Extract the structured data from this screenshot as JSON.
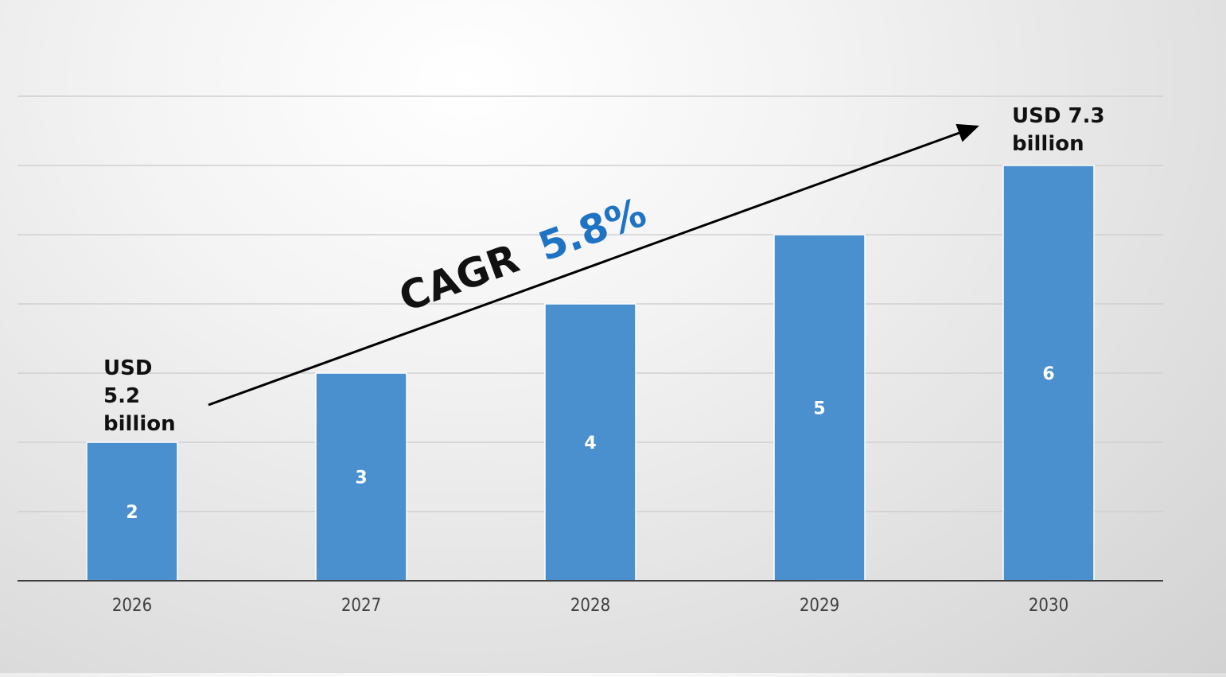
{
  "colors": {
    "bar": "#4a8fce",
    "bar_edge": "#ffffff",
    "grid": "#d0d0d0",
    "axis": "#404040",
    "cagr_text": "#111111",
    "cagr_value": "#1f73c4"
  },
  "chart_data": {
    "type": "bar",
    "categories": [
      "2026",
      "2027",
      "2028",
      "2029",
      "2030"
    ],
    "values": [
      2,
      3,
      4,
      5,
      6
    ],
    "data_labels": [
      "2",
      "3",
      "4",
      "5",
      "6"
    ],
    "title": "",
    "xlabel": "",
    "ylabel": "",
    "ylim": [
      0,
      7
    ],
    "grid": true,
    "legend": "none",
    "annotations": {
      "start": [
        "USD",
        "5.2",
        "billion"
      ],
      "end": [
        "USD 7.3",
        "billion"
      ],
      "cagr_label": "CAGR",
      "cagr_value": "5.8%"
    }
  }
}
